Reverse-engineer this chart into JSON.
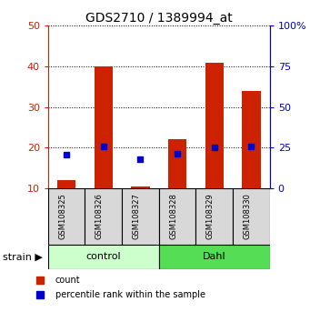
{
  "title": "GDS2710 / 1389994_at",
  "samples": [
    "GSM108325",
    "GSM108326",
    "GSM108327",
    "GSM108328",
    "GSM108329",
    "GSM108330"
  ],
  "counts": [
    12,
    40,
    10.5,
    22,
    41,
    34
  ],
  "percentile_ranks": [
    21,
    26,
    18,
    21.5,
    25,
    26
  ],
  "groups": [
    {
      "label": "control",
      "samples": [
        0,
        1,
        2
      ],
      "color": "#ccffcc"
    },
    {
      "label": "Dahl",
      "samples": [
        3,
        4,
        5
      ],
      "color": "#55dd55"
    }
  ],
  "ylim_left": [
    10,
    50
  ],
  "ylim_right": [
    0,
    100
  ],
  "left_ticks": [
    10,
    20,
    30,
    40,
    50
  ],
  "right_ticks": [
    0,
    25,
    50,
    75,
    100
  ],
  "right_tick_labels": [
    "0",
    "25",
    "50",
    "75",
    "100%"
  ],
  "bar_color": "#cc2200",
  "marker_color": "#0000cc",
  "bar_width": 0.5,
  "group_label": "strain",
  "background_color": "#ffffff",
  "tick_color_left": "#cc2200",
  "tick_color_right": "#0000cc",
  "title_fontsize": 10,
  "tick_fontsize": 8,
  "sample_fontsize": 6,
  "legend_fontsize": 7
}
